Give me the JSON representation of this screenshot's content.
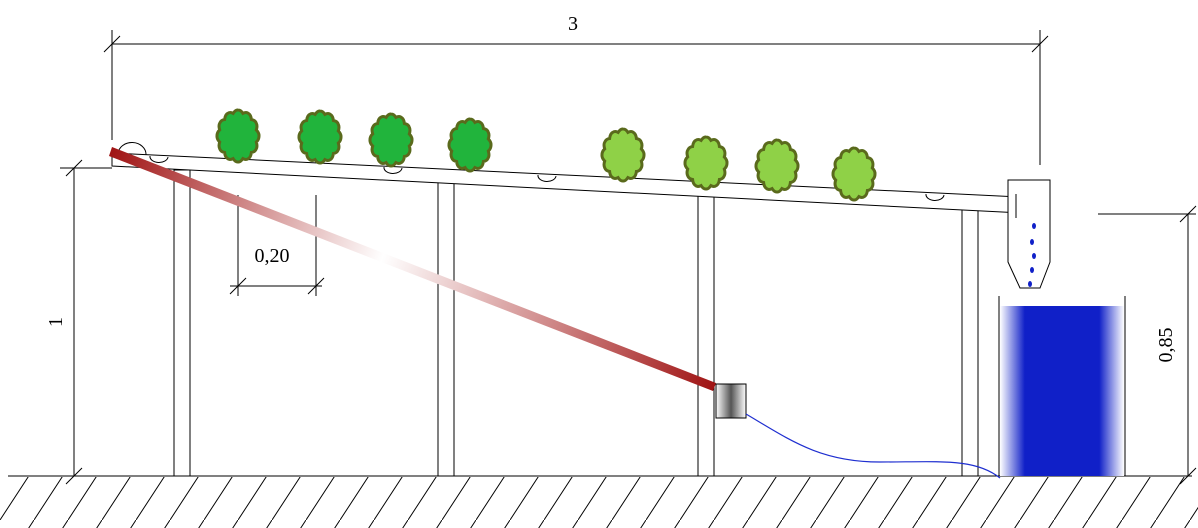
{
  "dimensions": {
    "total_length": "3",
    "left_height": "1",
    "spacing": "0,20",
    "reservoir_height": "0,85"
  },
  "colors": {
    "plant_dark_fill": "#21b43c",
    "plant_light_fill": "#8fd147",
    "plant_outline": "#5a6a1c",
    "pipe_red": "#a01414",
    "water_blue": "#1020c8",
    "hose_blue": "#1f2fd0",
    "line": "#000000"
  },
  "plants": {
    "dark_count": 4,
    "light_count": 4
  },
  "icons": {
    "plant": "lettuce-plant-icon",
    "pump": "pump-icon",
    "reservoir": "water-tank-icon",
    "funnel": "drain-funnel-icon"
  }
}
